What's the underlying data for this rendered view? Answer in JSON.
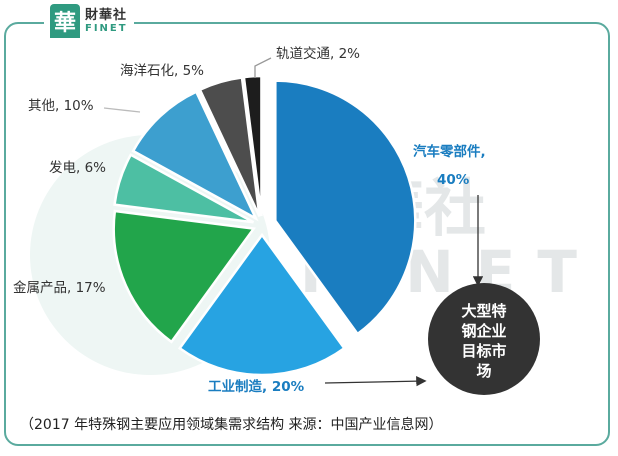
{
  "brand": {
    "mark": "華",
    "cn": "財華社",
    "en": "FINET"
  },
  "watermark": {
    "cn": "財華社",
    "en": "FINET"
  },
  "chart_data": {
    "type": "pie",
    "title": "",
    "slices": [
      {
        "label": "汽车零部件",
        "value": 40,
        "display": "汽车零部件,",
        "display2": "40%",
        "color": "#1a7dc0"
      },
      {
        "label": "工业制造",
        "value": 20,
        "display": "工业制造, 20%",
        "color": "#27a3e2"
      },
      {
        "label": "金属产品",
        "value": 17,
        "display": "金属产品, 17%",
        "color": "#22a54b"
      },
      {
        "label": "发电",
        "value": 6,
        "display": "发电, 6%",
        "color": "#4dbfa3"
      },
      {
        "label": "其他",
        "value": 10,
        "display": "其他, 10%",
        "color": "#3d9fcf"
      },
      {
        "label": "海洋石化",
        "value": 5,
        "display": "海洋石化, 5%",
        "color": "#4d4d4d"
      },
      {
        "label": "轨道交通",
        "value": 2,
        "display": "轨道交通, 2%",
        "color": "#1d1d1d"
      }
    ],
    "callout": {
      "line1": "大型特",
      "line2": "钢企业",
      "line3": "目标市",
      "line4": "场"
    },
    "label_colors": {
      "highlight": "#1a7dc0",
      "normal": "#333333"
    }
  },
  "footnote": "（2017 年特殊钢主要应用领域集需求结构    来源：中国产业信息网）"
}
